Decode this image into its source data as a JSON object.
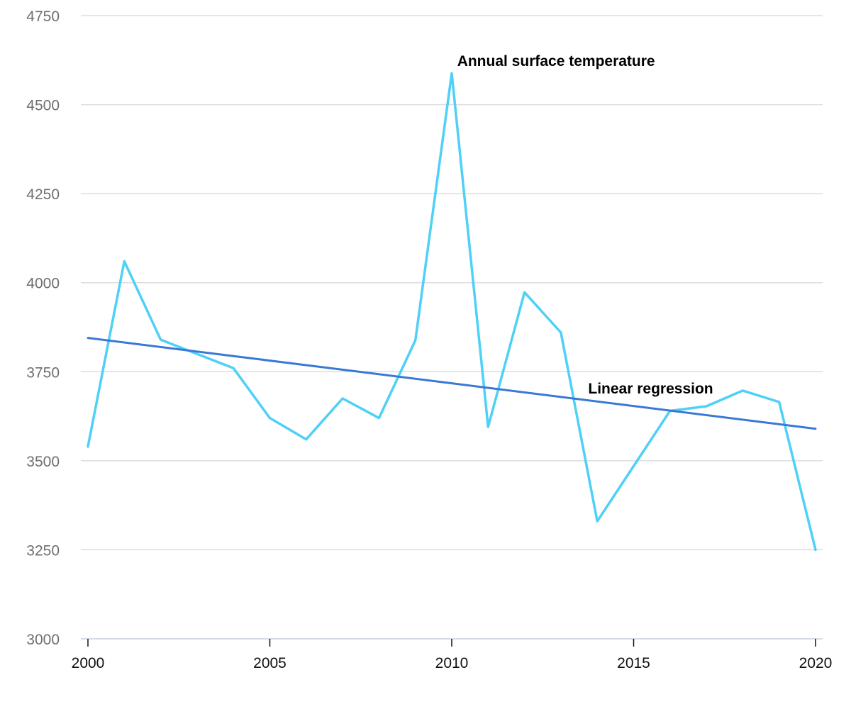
{
  "chart_data": {
    "type": "line",
    "title": "",
    "xlabel": "",
    "ylabel": "",
    "xlim": [
      2000,
      2020
    ],
    "ylim": [
      3000,
      4750
    ],
    "x_ticks": [
      2000,
      2005,
      2010,
      2015,
      2020
    ],
    "y_ticks": [
      3000,
      3250,
      3500,
      3750,
      4000,
      4250,
      4500,
      4750
    ],
    "grid": true,
    "legend": "none",
    "series": [
      {
        "name": "Annual surface temperature",
        "color": "#4fd0f7",
        "x": [
          2000,
          2001,
          2002,
          2003,
          2004,
          2005,
          2006,
          2007,
          2008,
          2009,
          2010,
          2011,
          2012,
          2013,
          2014,
          2015,
          2016,
          2017,
          2018,
          2019,
          2020
        ],
        "values": [
          3540,
          4060,
          3840,
          3800,
          3760,
          3620,
          3560,
          3675,
          3620,
          3838,
          4588,
          3595,
          3973,
          3860,
          3330,
          3485,
          3640,
          3653,
          3697,
          3665,
          3250
        ]
      },
      {
        "name": "Linear regression",
        "color": "#3a78d4",
        "x": [
          2000,
          2020
        ],
        "values": [
          3845,
          3590
        ]
      }
    ]
  }
}
